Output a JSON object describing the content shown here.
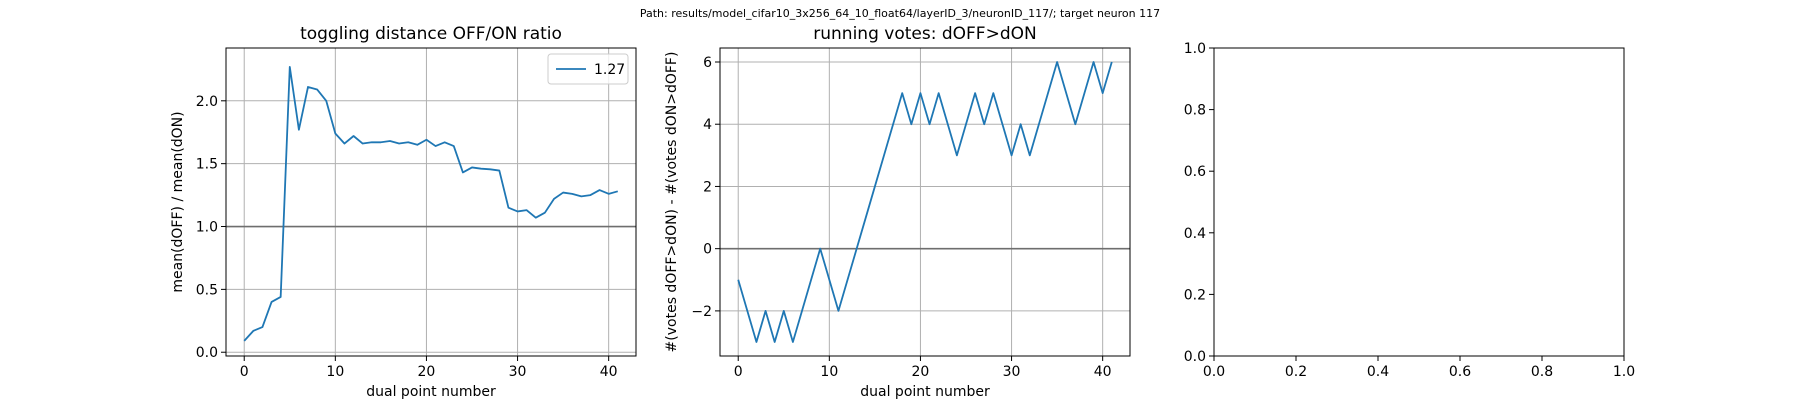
{
  "suptitle": "Path: results/model_cifar10_3x256_64_10_float64/layerID_3/neuronID_117/; target neuron 117",
  "colors": {
    "series": "#1f77b4",
    "hline": "#6e6e6e",
    "grid": "#b0b0b0"
  },
  "chart_data": [
    {
      "type": "line",
      "title": "toggling distance OFF/ON ratio",
      "xlabel": "dual point number",
      "ylabel": "mean(dOFF) / mean(dON)",
      "xlim": [
        -2,
        43
      ],
      "ylim": [
        -0.03,
        2.42
      ],
      "xticks": [
        0,
        10,
        20,
        30,
        40
      ],
      "yticks": [
        0.0,
        0.5,
        1.0,
        1.5,
        2.0
      ],
      "ytick_labels": [
        "0.0",
        "0.5",
        "1.0",
        "1.5",
        "2.0"
      ],
      "grid": true,
      "hline": 1.0,
      "legend": {
        "position": "upper right",
        "entries": [
          "1.27"
        ]
      },
      "series": [
        {
          "name": "1.27",
          "x": [
            0,
            1,
            2,
            3,
            4,
            5,
            6,
            7,
            8,
            9,
            10,
            11,
            12,
            13,
            14,
            15,
            16,
            17,
            18,
            19,
            20,
            21,
            22,
            23,
            24,
            25,
            26,
            27,
            28,
            29,
            30,
            31,
            32,
            33,
            34,
            35,
            36,
            37,
            38,
            39,
            40,
            41
          ],
          "values": [
            0.09,
            0.17,
            0.2,
            0.4,
            0.44,
            2.27,
            1.77,
            2.11,
            2.09,
            2.0,
            1.74,
            1.66,
            1.72,
            1.66,
            1.67,
            1.67,
            1.68,
            1.66,
            1.67,
            1.65,
            1.69,
            1.64,
            1.67,
            1.64,
            1.43,
            1.47,
            1.46,
            1.455,
            1.445,
            1.15,
            1.12,
            1.13,
            1.07,
            1.11,
            1.22,
            1.27,
            1.26,
            1.24,
            1.25,
            1.29,
            1.26,
            1.28
          ]
        }
      ]
    },
    {
      "type": "line",
      "title": "running votes: dOFF>dON",
      "xlabel": "dual point number",
      "ylabel": "#(votes dOFF>dON) - #(votes dON>dOFF)",
      "xlim": [
        -2,
        43
      ],
      "ylim": [
        -3.45,
        6.45
      ],
      "xticks": [
        0,
        10,
        20,
        30,
        40
      ],
      "yticks": [
        -2,
        0,
        2,
        4,
        6
      ],
      "ytick_labels": [
        "−2",
        "0",
        "2",
        "4",
        "6"
      ],
      "grid": true,
      "hline": 0,
      "series": [
        {
          "x": [
            0,
            1,
            2,
            3,
            4,
            5,
            6,
            7,
            8,
            9,
            10,
            11,
            12,
            13,
            14,
            15,
            16,
            17,
            18,
            19,
            20,
            21,
            22,
            23,
            24,
            25,
            26,
            27,
            28,
            29,
            30,
            31,
            32,
            33,
            34,
            35,
            36,
            37,
            38,
            39,
            40,
            41
          ],
          "values": [
            -1,
            -2,
            -3,
            -2,
            -3,
            -2,
            -3,
            -2,
            -1,
            0,
            -1,
            -2,
            -1,
            0,
            1,
            2,
            3,
            4,
            5,
            4,
            5,
            4,
            5,
            4,
            3,
            4,
            5,
            4,
            5,
            4,
            3,
            4,
            3,
            4,
            5,
            6,
            5,
            4,
            5,
            6,
            5,
            6
          ]
        }
      ]
    },
    {
      "type": "line",
      "title": "",
      "xlabel": "",
      "ylabel": "",
      "xlim": [
        0,
        1
      ],
      "ylim": [
        0,
        1
      ],
      "xticks": [
        0.0,
        0.2,
        0.4,
        0.6,
        0.8,
        1.0
      ],
      "yticks": [
        0.0,
        0.2,
        0.4,
        0.6,
        0.8,
        1.0
      ],
      "xtick_labels": [
        "0.0",
        "0.2",
        "0.4",
        "0.6",
        "0.8",
        "1.0"
      ],
      "ytick_labels": [
        "0.0",
        "0.2",
        "0.4",
        "0.6",
        "0.8",
        "1.0"
      ],
      "grid": false,
      "series": []
    }
  ]
}
